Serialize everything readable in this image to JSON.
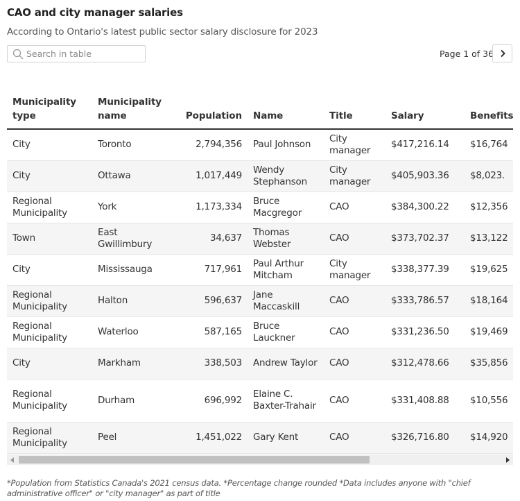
{
  "header": {
    "title": "CAO and city manager salaries",
    "subtitle": "According to Ontario's latest public sector salary disclosure for 2023"
  },
  "search": {
    "placeholder": "Search in table",
    "value": ""
  },
  "pager": {
    "label": "Page 1 of 36"
  },
  "table": {
    "columns": [
      "Municipality type",
      "Municipality name",
      "Population",
      "Name",
      "Title",
      "Salary",
      "Benefits"
    ],
    "rows": [
      [
        "City",
        "Toronto",
        "2,794,356",
        "Paul Johnson",
        "City manager",
        "$417,216.14",
        "$16,764"
      ],
      [
        "City",
        "Ottawa",
        "1,017,449",
        "Wendy Stephanson",
        "City manager",
        "$405,903.36",
        "$8,023."
      ],
      [
        "Regional Municipality",
        "York",
        "1,173,334",
        "Bruce Macgregor",
        "CAO",
        "$384,300.22",
        "$12,356"
      ],
      [
        "Town",
        "East Gwillimbury",
        "34,637",
        "Thomas Webster",
        "CAO",
        "$373,702.37",
        "$13,122"
      ],
      [
        "City",
        "Mississauga",
        "717,961",
        "Paul Arthur Mitcham",
        "City manager",
        "$338,377.39",
        "$19,625"
      ],
      [
        "Regional Municipality",
        "Halton",
        "596,637",
        "Jane Maccaskill",
        "CAO",
        "$333,786.57",
        "$18,164"
      ],
      [
        "Regional Municipality",
        "Waterloo",
        "587,165",
        "Bruce Lauckner",
        "CAO",
        "$331,236.50",
        "$19,469"
      ],
      [
        "City",
        "Markham",
        "338,503",
        "Andrew Taylor",
        "CAO",
        "$312,478.66",
        "$35,856"
      ],
      [
        "Regional Municipality",
        "Durham",
        "696,992",
        "Elaine C. Baxter-Trahair",
        "CAO",
        "$331,408.88",
        "$10,556"
      ],
      [
        "Regional Municipality",
        "Peel",
        "1,451,022",
        "Gary Kent",
        "CAO",
        "$326,716.80",
        "$14,920"
      ]
    ]
  },
  "footnote": "*Population from Statistics Canada's 2021 census data. *Percentage change rounded *Data includes anyone with \"chief administrative officer\" or \"city manager\" as part of title",
  "icons": {
    "search": "search-icon",
    "next": "chevron-right-icon",
    "scroll_left": "arrow-left-icon",
    "scroll_right": "arrow-right-icon"
  },
  "colors": {
    "header_rule": "#333333",
    "row_alt": "#f5f5f5",
    "scrollbar_thumb": "#c1c1c1"
  }
}
